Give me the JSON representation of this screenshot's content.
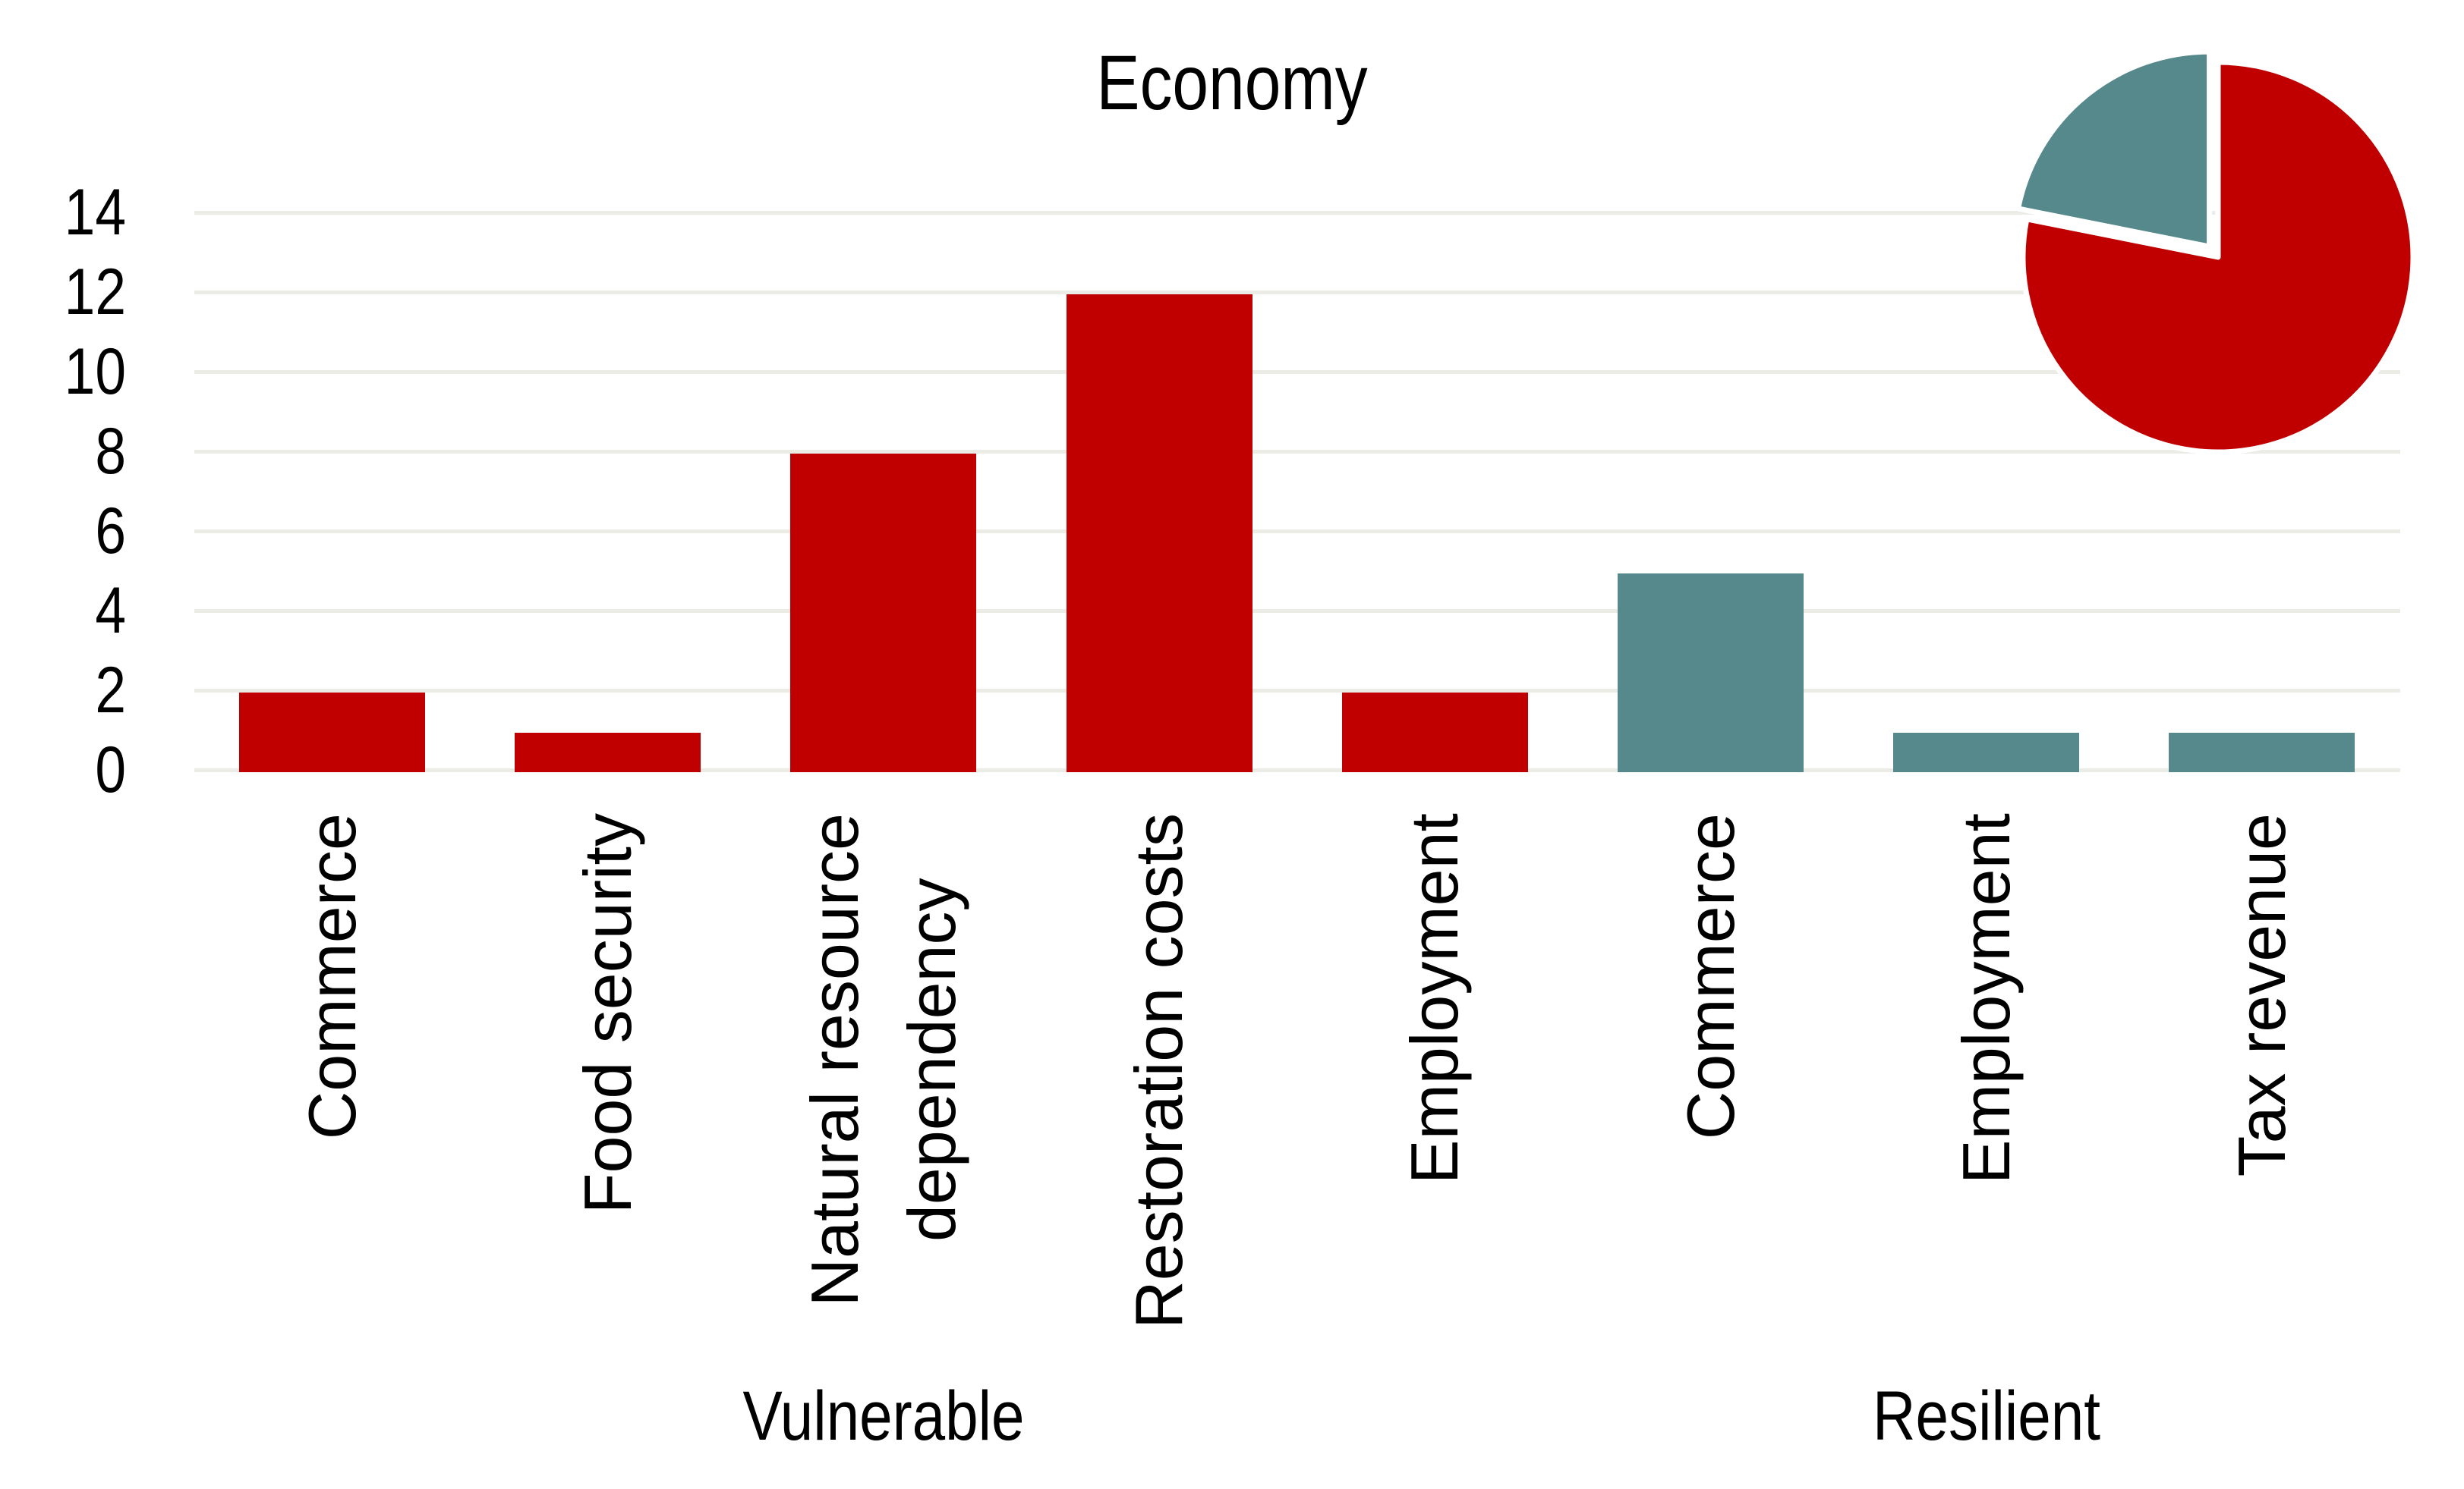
{
  "title": "Economy",
  "colors": {
    "vulnerable": "#c00000",
    "resilient": "#55898c",
    "gridline": "#ecece6",
    "text": "#000000",
    "background": "#ffffff"
  },
  "chart_data": {
    "type": "bar",
    "title": "Economy",
    "xlabel": "",
    "ylabel": "",
    "ylim": [
      0,
      14
    ],
    "y_ticks": [
      0,
      2,
      4,
      6,
      8,
      10,
      12,
      14
    ],
    "grid": true,
    "legend": "none",
    "groups": [
      {
        "label": "Vulnerable",
        "color": "#c00000",
        "categories": [
          "Commerce",
          "Food security",
          "Natural resource\ndependency",
          "Restoration costs",
          "Employment"
        ],
        "values": [
          2,
          1,
          8,
          12,
          2
        ]
      },
      {
        "label": "Resilient",
        "color": "#55898c",
        "categories": [
          "Commerce",
          "Employment",
          "Tax revenue"
        ],
        "values": [
          5,
          1,
          1
        ]
      }
    ],
    "inset_pie": {
      "type": "pie",
      "position": "top-right",
      "start_angle_deg": 0,
      "direction": "clockwise",
      "slices": [
        {
          "name": "Vulnerable",
          "value": 25,
          "percent": 78,
          "color": "#c00000",
          "exploded": false
        },
        {
          "name": "Resilient",
          "value": 7,
          "percent": 22,
          "color": "#55898c",
          "exploded": true
        }
      ]
    }
  }
}
